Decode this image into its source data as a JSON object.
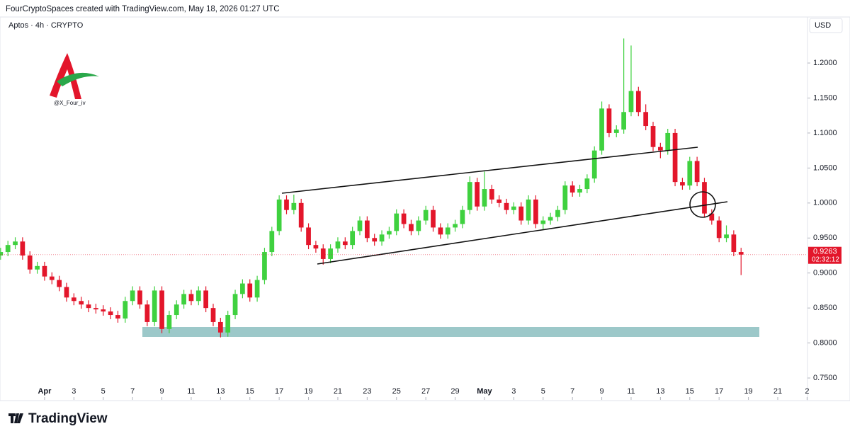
{
  "header": "FourCryptoSpaces created with TradingView.com, May 18, 2026 01:27 UTC",
  "footer": "TradingView",
  "watermark": "@X_Four_iv",
  "chart_data": {
    "type": "candlestick",
    "symbol": "Aptos · 4h · CRYPTO",
    "currency": "USD",
    "up_color": "#3fd13f",
    "down_color": "#e3162b",
    "x": [
      -3,
      -2.5,
      -2,
      -1.5,
      -1,
      -0.5,
      0,
      0.5,
      1,
      1.5,
      2,
      2.5,
      3,
      3.5,
      4,
      4.5,
      5,
      5.5,
      6,
      6.5,
      7,
      7.5,
      8,
      8.5,
      9,
      9.5,
      10,
      10.5,
      11,
      11.5,
      12,
      12.5,
      13,
      13.5,
      14,
      14.5,
      15,
      15.5,
      16,
      16.5,
      17,
      17.5,
      18,
      18.5,
      19,
      19.5,
      20,
      20.5,
      21,
      21.5,
      22,
      22.5,
      23,
      23.5,
      24,
      24.5,
      25,
      25.5,
      26,
      26.5,
      27,
      27.5,
      28,
      28.5,
      29,
      29.5,
      30,
      30.5,
      31,
      31.5,
      32,
      32.5,
      33,
      33.5,
      34,
      34.5,
      35,
      35.5,
      36,
      36.5,
      37,
      37.5,
      38,
      38.5,
      39,
      39.5,
      40,
      40.5,
      41,
      41.5,
      42,
      42.5,
      43,
      43.5,
      44,
      44.5,
      45,
      45.5,
      46,
      46.5,
      47,
      47.5
    ],
    "open": [
      0.925,
      0.93,
      0.94,
      0.945,
      0.925,
      0.905,
      0.91,
      0.895,
      0.89,
      0.88,
      0.865,
      0.86,
      0.855,
      0.85,
      0.848,
      0.845,
      0.84,
      0.835,
      0.86,
      0.875,
      0.855,
      0.83,
      0.875,
      0.82,
      0.84,
      0.855,
      0.87,
      0.86,
      0.875,
      0.85,
      0.83,
      0.815,
      0.84,
      0.87,
      0.885,
      0.865,
      0.89,
      0.93,
      0.96,
      1.005,
      0.99,
      1.0,
      0.965,
      0.94,
      0.935,
      0.92,
      0.935,
      0.945,
      0.94,
      0.96,
      0.975,
      0.95,
      0.945,
      0.955,
      0.96,
      0.985,
      0.97,
      0.96,
      0.975,
      0.99,
      0.965,
      0.955,
      0.965,
      0.97,
      0.99,
      1.03,
      0.995,
      1.02,
      1.005,
      1.0,
      0.99,
      0.995,
      0.975,
      1.005,
      0.97,
      0.975,
      0.98,
      0.99,
      1.025,
      1.015,
      1.02,
      1.035,
      1.075,
      1.135,
      1.1,
      1.105,
      1.13,
      1.16,
      1.13,
      1.11,
      1.08,
      1.075,
      1.1,
      1.03,
      1.025,
      1.06,
      1.03,
      0.985,
      0.975,
      0.95,
      0.955,
      0.93
    ],
    "high": [
      0.936,
      0.946,
      0.951,
      0.951,
      0.931,
      0.916,
      0.916,
      0.901,
      0.896,
      0.886,
      0.871,
      0.866,
      0.861,
      0.856,
      0.854,
      0.851,
      0.846,
      0.866,
      0.881,
      0.881,
      0.861,
      0.881,
      0.881,
      0.846,
      0.861,
      0.876,
      0.876,
      0.881,
      0.881,
      0.856,
      0.836,
      0.846,
      0.876,
      0.891,
      0.891,
      0.896,
      0.936,
      0.966,
      1.011,
      1.011,
      1.012,
      1.006,
      0.971,
      0.946,
      0.941,
      0.941,
      0.951,
      0.951,
      0.966,
      0.981,
      0.981,
      0.956,
      0.961,
      0.966,
      0.991,
      0.991,
      0.976,
      0.981,
      0.996,
      0.996,
      0.971,
      0.971,
      0.976,
      0.996,
      1.038,
      1.036,
      1.045,
      1.026,
      1.011,
      1.006,
      1.001,
      1.001,
      1.011,
      1.011,
      0.981,
      0.986,
      0.996,
      1.031,
      1.031,
      1.026,
      1.041,
      1.081,
      1.145,
      1.141,
      1.111,
      1.235,
      1.225,
      1.166,
      1.141,
      1.116,
      1.086,
      1.106,
      1.106,
      1.036,
      1.066,
      1.066,
      1.036,
      0.991,
      0.981,
      0.968,
      0.961,
      0.936
    ],
    "low": [
      0.919,
      0.924,
      0.934,
      0.919,
      0.899,
      0.899,
      0.889,
      0.884,
      0.874,
      0.859,
      0.854,
      0.849,
      0.844,
      0.842,
      0.839,
      0.834,
      0.829,
      0.829,
      0.854,
      0.849,
      0.824,
      0.824,
      0.814,
      0.814,
      0.834,
      0.849,
      0.854,
      0.854,
      0.844,
      0.824,
      0.808,
      0.809,
      0.834,
      0.864,
      0.859,
      0.859,
      0.884,
      0.924,
      0.954,
      0.984,
      0.984,
      0.959,
      0.934,
      0.929,
      0.912,
      0.914,
      0.929,
      0.934,
      0.934,
      0.954,
      0.944,
      0.939,
      0.939,
      0.949,
      0.954,
      0.964,
      0.954,
      0.954,
      0.969,
      0.959,
      0.949,
      0.949,
      0.959,
      0.964,
      0.984,
      0.989,
      0.989,
      0.999,
      0.994,
      0.984,
      0.984,
      0.969,
      0.969,
      0.964,
      0.962,
      0.969,
      0.974,
      0.984,
      1.009,
      1.009,
      1.014,
      1.029,
      1.069,
      1.094,
      1.094,
      1.099,
      1.124,
      1.124,
      1.104,
      1.074,
      1.064,
      1.069,
      1.024,
      1.019,
      1.019,
      1.024,
      0.979,
      0.969,
      0.944,
      0.944,
      0.924,
      0.897
    ],
    "close": [
      0.93,
      0.94,
      0.945,
      0.925,
      0.905,
      0.91,
      0.895,
      0.89,
      0.88,
      0.865,
      0.86,
      0.855,
      0.85,
      0.848,
      0.845,
      0.84,
      0.835,
      0.86,
      0.875,
      0.855,
      0.83,
      0.875,
      0.82,
      0.84,
      0.855,
      0.87,
      0.86,
      0.875,
      0.85,
      0.83,
      0.815,
      0.84,
      0.87,
      0.885,
      0.865,
      0.89,
      0.93,
      0.96,
      1.005,
      0.99,
      1.0,
      0.965,
      0.94,
      0.935,
      0.92,
      0.935,
      0.945,
      0.94,
      0.96,
      0.975,
      0.95,
      0.945,
      0.955,
      0.96,
      0.985,
      0.97,
      0.96,
      0.975,
      0.99,
      0.965,
      0.955,
      0.965,
      0.97,
      0.99,
      1.03,
      0.995,
      1.02,
      1.005,
      1.0,
      0.99,
      0.995,
      0.975,
      1.005,
      0.97,
      0.975,
      0.98,
      0.99,
      1.025,
      1.015,
      1.02,
      1.035,
      1.075,
      1.135,
      1.1,
      1.105,
      1.13,
      1.16,
      1.13,
      1.11,
      1.08,
      1.075,
      1.1,
      1.03,
      1.025,
      1.06,
      1.03,
      0.985,
      0.975,
      0.95,
      0.955,
      0.93,
      0.9263
    ],
    "last_price": 0.9263,
    "countdown": "02:32:12",
    "xlim": [
      -3.04,
      52.03
    ],
    "xticks": [
      {
        "value": 0,
        "label": "Apr"
      },
      {
        "value": 2,
        "label": "3"
      },
      {
        "value": 4,
        "label": "5"
      },
      {
        "value": 6,
        "label": "7"
      },
      {
        "value": 8,
        "label": "9"
      },
      {
        "value": 10,
        "label": "11"
      },
      {
        "value": 12,
        "label": "13"
      },
      {
        "value": 14,
        "label": "15"
      },
      {
        "value": 16,
        "label": "17"
      },
      {
        "value": 18,
        "label": "19"
      },
      {
        "value": 20,
        "label": "21"
      },
      {
        "value": 22,
        "label": "23"
      },
      {
        "value": 24,
        "label": "25"
      },
      {
        "value": 26,
        "label": "27"
      },
      {
        "value": 28,
        "label": "29"
      },
      {
        "value": 30,
        "label": "May"
      },
      {
        "value": 32,
        "label": "3"
      },
      {
        "value": 34,
        "label": "5"
      },
      {
        "value": 36,
        "label": "7"
      },
      {
        "value": 38,
        "label": "9"
      },
      {
        "value": 40,
        "label": "11"
      },
      {
        "value": 42,
        "label": "13"
      },
      {
        "value": 44,
        "label": "15"
      },
      {
        "value": 46,
        "label": "17"
      },
      {
        "value": 48,
        "label": "19"
      },
      {
        "value": 50,
        "label": "21"
      },
      {
        "value": 52,
        "label": "2"
      }
    ],
    "ylim": [
      0.7187,
      1.2415
    ],
    "yticks": [
      {
        "value": 0.75,
        "label": "0.7500"
      },
      {
        "value": 0.8,
        "label": "0.8000"
      },
      {
        "value": 0.85,
        "label": "0.8500"
      },
      {
        "value": 0.9,
        "label": "0.9000"
      },
      {
        "value": 0.95,
        "label": "0.9500"
      },
      {
        "value": 1.0,
        "label": "1.0000"
      },
      {
        "value": 1.05,
        "label": "1.0500"
      },
      {
        "value": 1.1,
        "label": "1.1000"
      },
      {
        "value": 1.15,
        "label": "1.1500"
      },
      {
        "value": 1.2,
        "label": "1.2000"
      }
    ]
  }
}
